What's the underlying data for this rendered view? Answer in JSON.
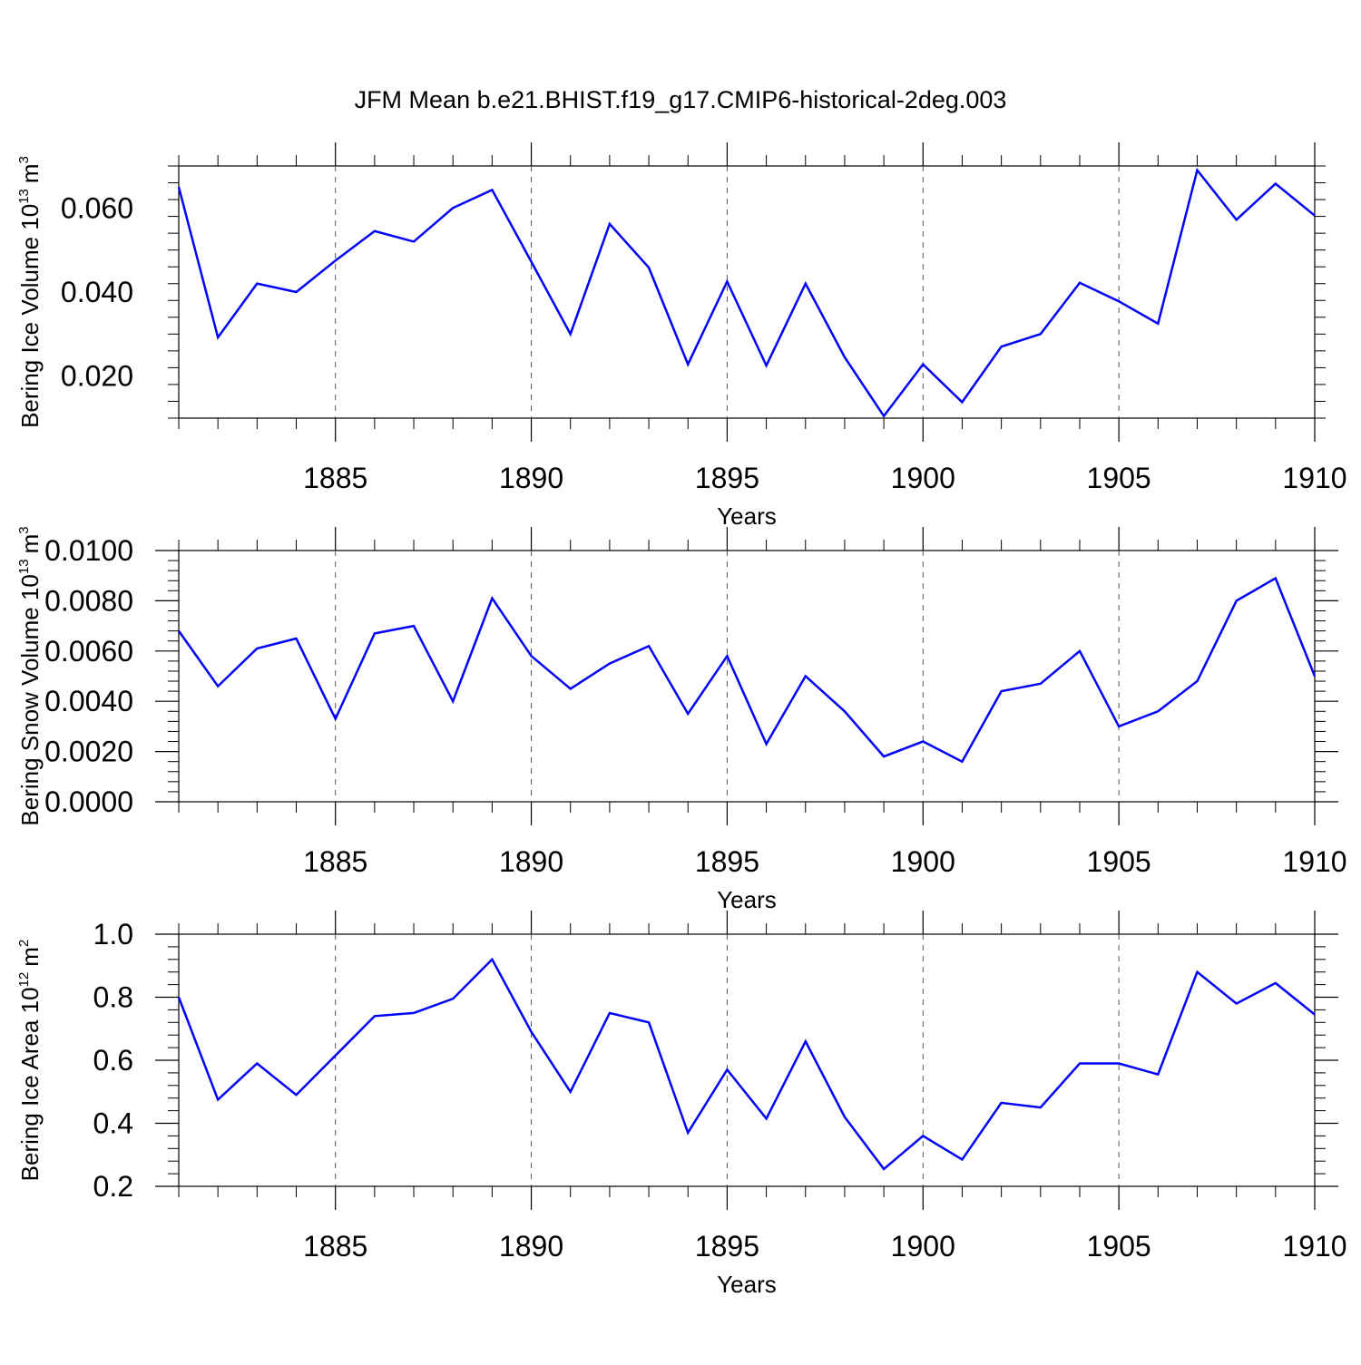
{
  "chart_data": [
    {
      "type": "line",
      "title": "JFM Mean b.e21.BHIST.f19_g17.CMIP6-historical-2deg.003",
      "xlabel": "Years",
      "ylabel": "Bering Ice Volume 10",
      "ylabel_exponent": "13",
      "ylabel_unit": "m",
      "ylabel_unit_power": "3",
      "xlim": [
        1881,
        1910
      ],
      "ylim": [
        0.01,
        0.07
      ],
      "yticks": [
        0.02,
        0.04,
        0.06
      ],
      "ytick_labels": [
        "0.020",
        "0.040",
        "0.060"
      ],
      "xticks": [
        1885,
        1890,
        1895,
        1900,
        1905,
        1910
      ],
      "xtick_labels": [
        "1885",
        "1890",
        "1895",
        "1900",
        "1905",
        "1910"
      ],
      "line_color": "#0000ff",
      "x": [
        1881,
        1882,
        1883,
        1884,
        1885,
        1886,
        1887,
        1888,
        1889,
        1890,
        1891,
        1892,
        1893,
        1894,
        1895,
        1896,
        1897,
        1898,
        1899,
        1900,
        1901,
        1902,
        1903,
        1904,
        1905,
        1906,
        1907,
        1908,
        1909,
        1910
      ],
      "values": [
        0.065,
        0.0292,
        0.042,
        0.04,
        0.0475,
        0.0545,
        0.052,
        0.06,
        0.0643,
        0.0472,
        0.03,
        0.0562,
        0.0458,
        0.0228,
        0.0425,
        0.0225,
        0.042,
        0.0245,
        0.0105,
        0.0228,
        0.0138,
        0.027,
        0.03,
        0.0422,
        0.0378,
        0.0325,
        0.069,
        0.0572,
        0.0658,
        0.0582
      ]
    },
    {
      "type": "line",
      "title": "",
      "xlabel": "Years",
      "ylabel": "Bering Snow Volume 10",
      "ylabel_exponent": "13",
      "ylabel_unit": "m",
      "ylabel_unit_power": "3",
      "xlim": [
        1881,
        1910
      ],
      "ylim": [
        0,
        0.01
      ],
      "yticks": [
        0,
        0.002,
        0.004,
        0.006,
        0.008,
        0.01
      ],
      "ytick_labels": [
        "0.0000",
        "0.0020",
        "0.0040",
        "0.0060",
        "0.0080",
        "0.0100"
      ],
      "xticks": [
        1885,
        1890,
        1895,
        1900,
        1905,
        1910
      ],
      "xtick_labels": [
        "1885",
        "1890",
        "1895",
        "1900",
        "1905",
        "1910"
      ],
      "line_color": "#0000ff",
      "x": [
        1881,
        1882,
        1883,
        1884,
        1885,
        1886,
        1887,
        1888,
        1889,
        1890,
        1891,
        1892,
        1893,
        1894,
        1895,
        1896,
        1897,
        1898,
        1899,
        1900,
        1901,
        1902,
        1903,
        1904,
        1905,
        1906,
        1907,
        1908,
        1909,
        1910
      ],
      "values": [
        0.0068,
        0.0046,
        0.0061,
        0.0065,
        0.0033,
        0.0067,
        0.007,
        0.004,
        0.0081,
        0.0058,
        0.0045,
        0.0055,
        0.0062,
        0.0035,
        0.0058,
        0.0023,
        0.005,
        0.0036,
        0.0018,
        0.0024,
        0.0016,
        0.0044,
        0.0047,
        0.006,
        0.003,
        0.0036,
        0.0048,
        0.008,
        0.0089,
        0.005
      ]
    },
    {
      "type": "line",
      "title": "",
      "xlabel": "Years",
      "ylabel": "Bering Ice Area 10",
      "ylabel_exponent": "12",
      "ylabel_unit": "m",
      "ylabel_unit_power": "2",
      "xlim": [
        1881,
        1910
      ],
      "ylim": [
        0.2,
        1.0
      ],
      "yticks": [
        0.2,
        0.4,
        0.6,
        0.8,
        1.0
      ],
      "ytick_labels": [
        "0.2",
        "0.4",
        "0.6",
        "0.8",
        "1.0"
      ],
      "xticks": [
        1885,
        1890,
        1895,
        1900,
        1905,
        1910
      ],
      "xtick_labels": [
        "1885",
        "1890",
        "1895",
        "1900",
        "1905",
        "1910"
      ],
      "line_color": "#0000ff",
      "x": [
        1881,
        1882,
        1883,
        1884,
        1885,
        1886,
        1887,
        1888,
        1889,
        1890,
        1891,
        1892,
        1893,
        1894,
        1895,
        1896,
        1897,
        1898,
        1899,
        1900,
        1901,
        1902,
        1903,
        1904,
        1905,
        1906,
        1907,
        1908,
        1909,
        1910
      ],
      "values": [
        0.8,
        0.475,
        0.59,
        0.49,
        0.615,
        0.74,
        0.75,
        0.795,
        0.92,
        0.69,
        0.5,
        0.75,
        0.72,
        0.37,
        0.57,
        0.415,
        0.66,
        0.42,
        0.255,
        0.36,
        0.285,
        0.465,
        0.45,
        0.59,
        0.59,
        0.555,
        0.88,
        0.78,
        0.845,
        0.745
      ]
    }
  ]
}
